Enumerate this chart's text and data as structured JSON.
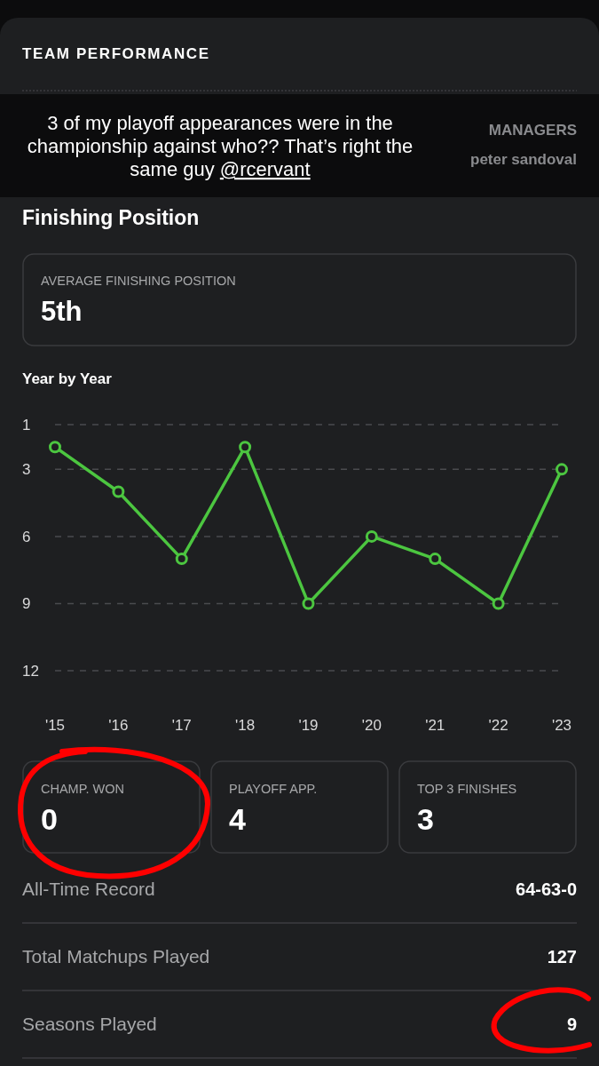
{
  "chart_data": [
    {
      "type": "other",
      "title": "TEAM PERFORMANCE",
      "annotations": [
        "3 of my playoff appearances were in the championship against who?? That’s right the same guy @rcervant",
        "MANAGERS",
        "peter sandoval"
      ]
    },
    {
      "type": "line",
      "title": "Finishing Position",
      "subtitle": "Year by Year",
      "annotations": [
        "AVERAGE FINISHING POSITION",
        "5th"
      ],
      "categories": [
        "'15",
        "'16",
        "'17",
        "'18",
        "'19",
        "'20",
        "'21",
        "'22",
        "'23"
      ],
      "values": [
        2,
        4,
        7,
        2,
        9,
        6,
        7,
        9,
        3
      ],
      "color": "#4cc640",
      "ylim": [
        12,
        1
      ],
      "yticks": [
        1,
        3,
        6,
        9,
        12
      ],
      "grid": "y",
      "marker": "circle"
    },
    {
      "type": "other",
      "categories": [
        "CHAMP. WON",
        "PLAYOFF APP.",
        "TOP 3 FINISHES"
      ],
      "values": [
        0,
        4,
        3
      ],
      "data_labels": true,
      "annotations": [
        "All-Time Record",
        "64-63-0",
        "Total Matchups Played",
        "127",
        "Seasons Played",
        "9"
      ]
    }
  ]
}
